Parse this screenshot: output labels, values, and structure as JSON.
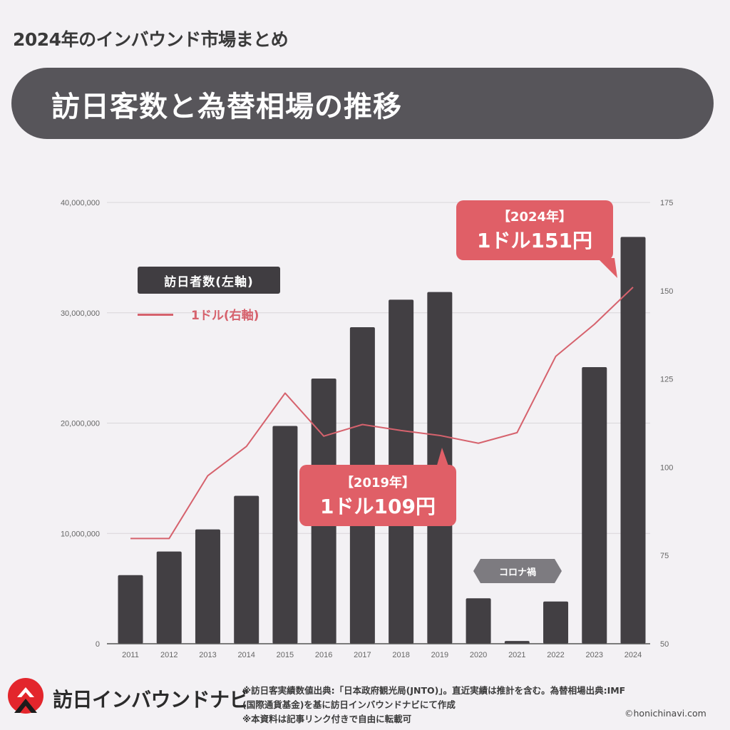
{
  "header": {
    "supertitle": "2024年のインバウンド市場まとめ",
    "title": "訪日客数と為替相場の推移"
  },
  "legend": {
    "bars_label": "訪日者数(左軸)",
    "line_label": "1ドル(右軸)"
  },
  "callouts": {
    "y2024": {
      "year": "【2024年】",
      "value": "1ドル151円"
    },
    "y2019": {
      "year": "【2019年】",
      "value": "1ドル109円"
    },
    "covid": "コロナ禍"
  },
  "colors": {
    "bar": "#423f43",
    "line": "#d6626d",
    "callout": "#e05f67",
    "title_pill": "#57555a",
    "background": "#f3f1f4"
  },
  "chart_data": {
    "type": "bar+line",
    "title": "訪日客数と為替相場の推移",
    "categories": [
      "2011",
      "2012",
      "2013",
      "2014",
      "2015",
      "2016",
      "2017",
      "2018",
      "2019",
      "2020",
      "2021",
      "2022",
      "2023",
      "2024"
    ],
    "series": [
      {
        "name": "訪日者数(左軸)",
        "type": "bar",
        "axis": "left",
        "values": [
          6220000,
          8360000,
          10360000,
          13410000,
          19740000,
          24040000,
          28690000,
          31190000,
          31880000,
          4120000,
          250000,
          3830000,
          25070000,
          36870000
        ]
      },
      {
        "name": "1ドル(右軸)",
        "type": "line",
        "axis": "right",
        "values": [
          79.8,
          79.8,
          97.6,
          105.9,
          121.0,
          108.8,
          112.1,
          110.4,
          109.0,
          106.8,
          109.8,
          131.4,
          140.5,
          151.0
        ]
      }
    ],
    "left_axis": {
      "ticks": [
        "0",
        "10,000,000",
        "20,000,000",
        "30,000,000",
        "40,000,000"
      ],
      "ylim": [
        0,
        40000000
      ]
    },
    "right_axis": {
      "ticks": [
        "50",
        "75",
        "100",
        "125",
        "150",
        "175"
      ],
      "ylim": [
        50,
        175
      ]
    },
    "xlabel": "",
    "ylabel": "",
    "grid": true,
    "annotations": [
      "【2024年】1ドル151円",
      "【2019年】1ドル109円",
      "コロナ禍"
    ]
  },
  "footer": {
    "brand": "訪日インバウンドナビ",
    "note_line1": "※訪日客実績数値出典:「日本政府観光局(JNTO)」。直近実績は推計を含む。為替相場出典:IMF",
    "note_line2": "(国際通貨基金)を基に訪日インバウンドナビにて作成",
    "note_line3": "※本資料は記事リンク付きで自由に転載可",
    "copyright": "©honichinavi.com"
  }
}
